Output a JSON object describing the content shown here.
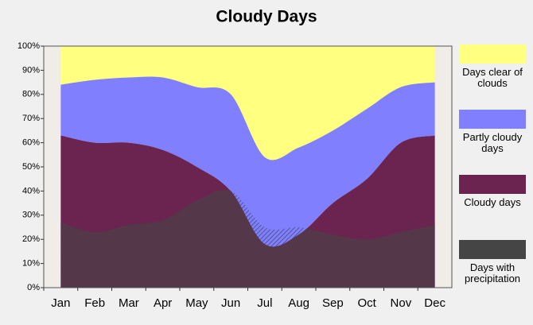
{
  "chart_data": {
    "type": "stacked_area",
    "title": "Cloudy Days",
    "categories": [
      "Jan",
      "Feb",
      "Mar",
      "Apr",
      "May",
      "Jun",
      "Jul",
      "Aug",
      "Sep",
      "Oct",
      "Nov",
      "Dec"
    ],
    "series": [
      {
        "name": "Cloudy days",
        "color": "#6b2350",
        "values": [
          63,
          60,
          60,
          57,
          50,
          40,
          18,
          22,
          35,
          45,
          60,
          63
        ]
      },
      {
        "name": "Partly cloudy days",
        "color": "#8080ff",
        "values": [
          21,
          26,
          27,
          30,
          33,
          40,
          36,
          36,
          30,
          29,
          23,
          22
        ]
      },
      {
        "name": "Days clear of clouds",
        "color": "#ffff80",
        "values": [
          16,
          14,
          13,
          13,
          17,
          20,
          46,
          42,
          35,
          26,
          17,
          15
        ]
      }
    ],
    "overlay": {
      "name": "Days with precipitation",
      "color": "#454545",
      "values": [
        27,
        23,
        26,
        28,
        36,
        40,
        25,
        25,
        22,
        20,
        23,
        26
      ]
    },
    "ylim": [
      0,
      100
    ],
    "yticks": [
      {
        "value": 0,
        "label": "0%"
      },
      {
        "value": 10,
        "label": "10%"
      },
      {
        "value": 20,
        "label": "20%"
      },
      {
        "value": 30,
        "label": "30%"
      },
      {
        "value": 40,
        "label": "40%"
      },
      {
        "value": 50,
        "label": "50%"
      },
      {
        "value": 60,
        "label": "60%"
      },
      {
        "value": 70,
        "label": "70%"
      },
      {
        "value": 80,
        "label": "80%"
      },
      {
        "value": 90,
        "label": "90%"
      },
      {
        "value": 100,
        "label": "100%"
      }
    ]
  }
}
